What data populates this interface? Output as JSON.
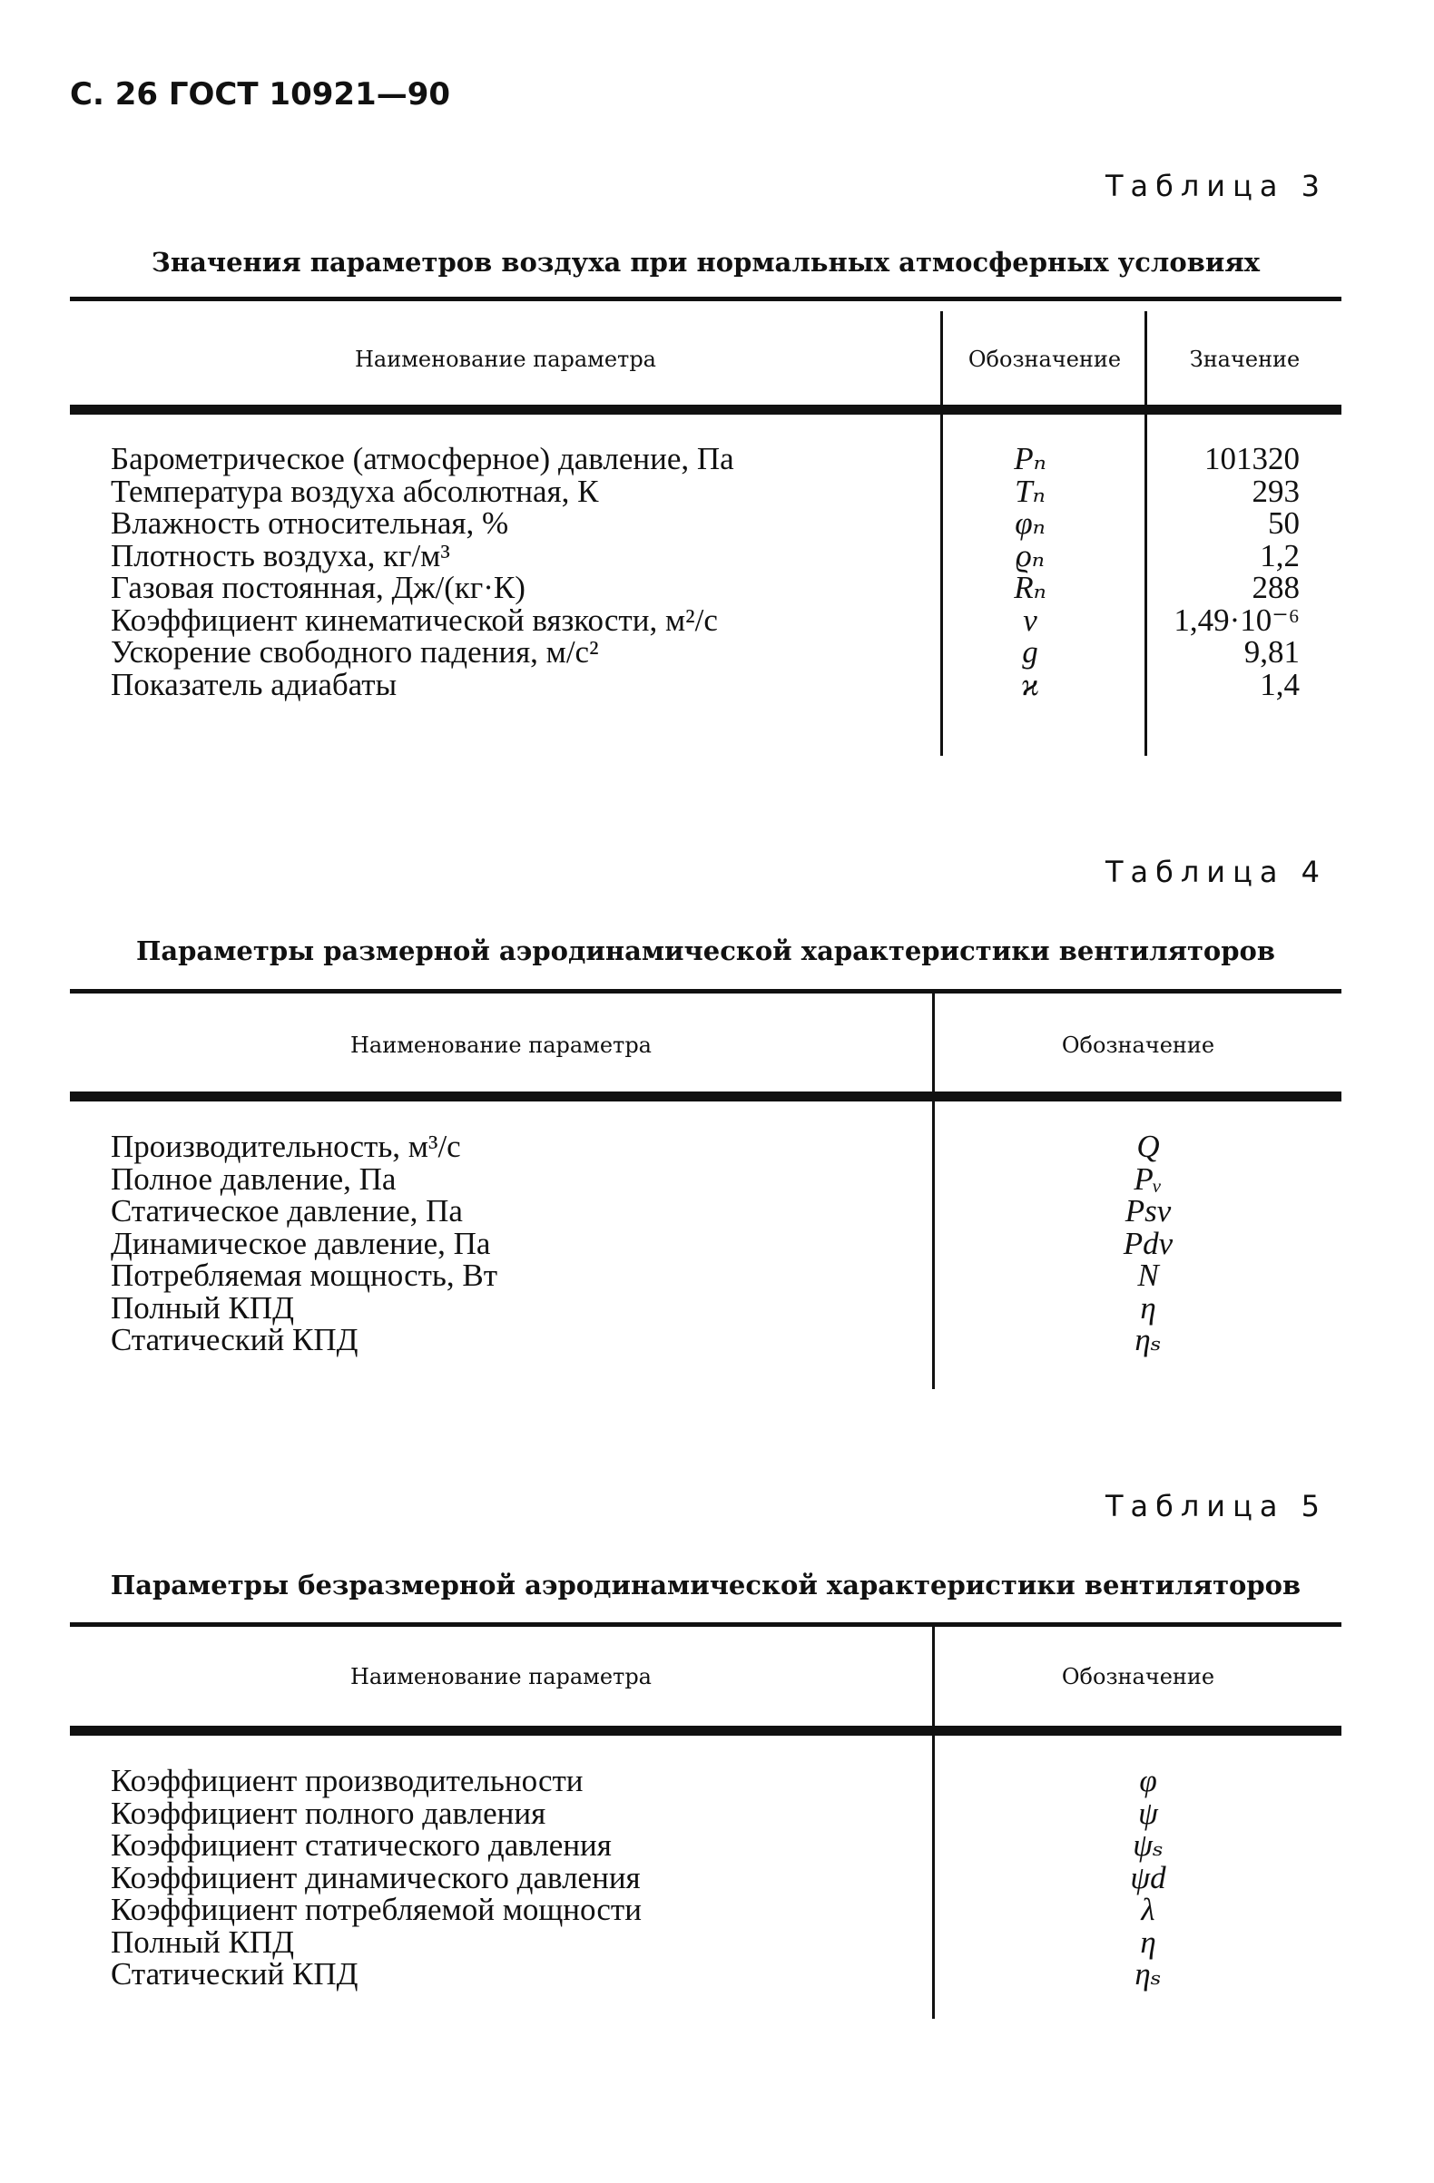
{
  "page_header": "С. 26 ГОСТ 10921—90",
  "table3": {
    "label": "Таблица 3",
    "title": "Значения параметров воздуха при нормальных атмосферных условиях",
    "headers": [
      "Наименование параметра",
      "Обозначение",
      "Значение"
    ],
    "rows": [
      {
        "name": "Барометрическое (атмосферное) давление, Па",
        "symbol": "Pₙ",
        "value": "101320"
      },
      {
        "name": "Температура воздуха абсолютная, К",
        "symbol": "Tₙ",
        "value": "293"
      },
      {
        "name": "Влажность относительная, %",
        "symbol": "φₙ",
        "value": "50"
      },
      {
        "name": "Плотность воздуха, кг/м³",
        "symbol": "ϱₙ",
        "value": "1,2"
      },
      {
        "name": "Газовая постоянная, Дж/(кг·К)",
        "symbol": "Rₙ",
        "value": "288"
      },
      {
        "name": "Коэффициент кинематической вязкости, м²/с",
        "symbol": "ν",
        "value": "1,49·10⁻⁶"
      },
      {
        "name": "Ускорение свободного падения, м/с²",
        "symbol": "g",
        "value": "9,81"
      },
      {
        "name": "Показатель адиабаты",
        "symbol": "ϰ",
        "value": "1,4"
      }
    ]
  },
  "table4": {
    "label": "Таблица 4",
    "title": "Параметры размерной аэродинамической характеристики вентиляторов",
    "headers": [
      "Наименование параметра",
      "Обозначение"
    ],
    "rows": [
      {
        "name": "Производительность, м³/с",
        "symbol": "Q"
      },
      {
        "name": "Полное давление, Па",
        "symbol": "Pᵥ"
      },
      {
        "name": "Статическое давление, Па",
        "symbol": "Psv"
      },
      {
        "name": "Динамическое давление, Па",
        "symbol": "Pdv"
      },
      {
        "name": "Потребляемая мощность, Вт",
        "symbol": "N"
      },
      {
        "name": "Полный КПД",
        "symbol": "η"
      },
      {
        "name": "Статический КПД",
        "symbol": "ηₛ"
      }
    ]
  },
  "table5": {
    "label": "Таблица 5",
    "title": "Параметры безразмерной аэродинамической характеристики вентиляторов",
    "headers": [
      "Наименование параметра",
      "Обозначение"
    ],
    "rows": [
      {
        "name": "Коэффициент производительности",
        "symbol": "φ"
      },
      {
        "name": "Коэффициент полного давления",
        "symbol": "ψ"
      },
      {
        "name": "Коэффициент статического давления",
        "symbol": "ψₛ"
      },
      {
        "name": "Коэффициент динамического давления",
        "symbol": "ψd"
      },
      {
        "name": "Коэффициент потребляемой мощности",
        "symbol": "λ"
      },
      {
        "name": "Полный КПД",
        "symbol": "η"
      },
      {
        "name": "Статический КПД",
        "symbol": "ηₛ"
      }
    ]
  }
}
